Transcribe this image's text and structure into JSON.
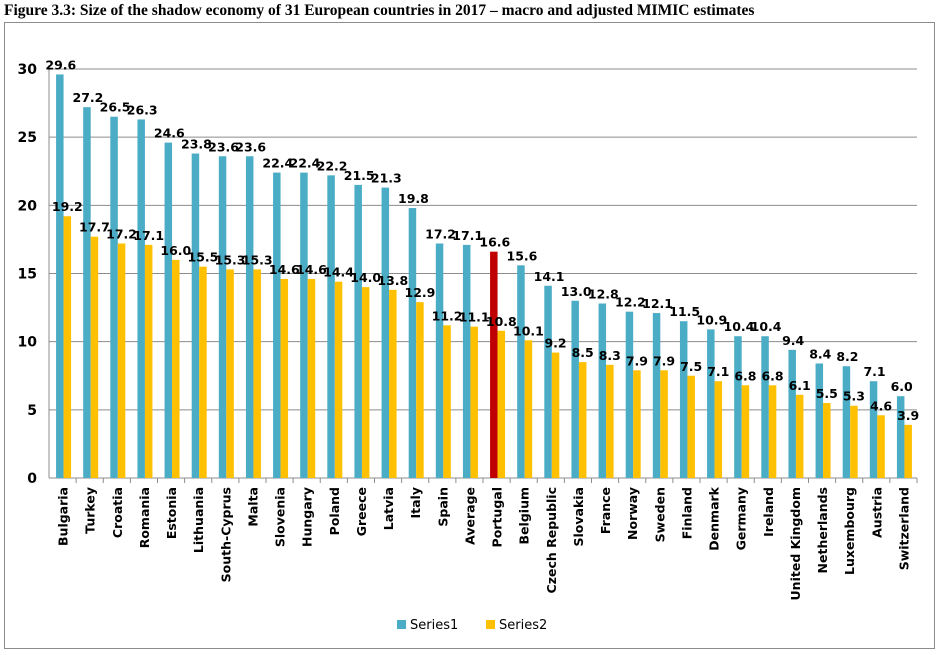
{
  "figure": {
    "title": "Figure 3.3: Size of the shadow economy of 31 European countries in 2017 – macro and adjusted MIMIC estimates"
  },
  "chart_data": {
    "type": "bar",
    "categories": [
      "Bulgaria",
      "Turkey",
      "Croatia",
      "Romania",
      "Estonia",
      "Lithuania",
      "South-Cyprus",
      "Malta",
      "Slovenia",
      "Hungary",
      "Poland",
      "Greece",
      "Latvia",
      "Italy",
      "Spain",
      "Average",
      "Portugal",
      "Belgium",
      "Czech Republic",
      "Slovakia",
      "France",
      "Norway",
      "Sweden",
      "Finland",
      "Denmark",
      "Germany",
      "Ireland",
      "United Kingdom",
      "Netherlands",
      "Luxembourg",
      "Austria",
      "Switzerland"
    ],
    "series": [
      {
        "name": "Series1",
        "color": "#4BACC6",
        "values": [
          29.6,
          27.2,
          26.5,
          26.3,
          24.6,
          23.8,
          23.6,
          23.6,
          22.4,
          22.4,
          22.2,
          21.5,
          21.3,
          19.8,
          17.2,
          17.1,
          16.6,
          15.6,
          14.1,
          13.0,
          12.8,
          12.2,
          12.1,
          11.5,
          10.9,
          10.4,
          10.4,
          9.4,
          8.4,
          8.2,
          7.1,
          6.0
        ]
      },
      {
        "name": "Series2",
        "color": "#FFC000",
        "values": [
          19.2,
          17.7,
          17.2,
          17.1,
          16.0,
          15.5,
          15.3,
          15.3,
          14.6,
          14.6,
          14.4,
          14.0,
          13.8,
          12.9,
          11.2,
          11.1,
          10.8,
          10.1,
          9.2,
          8.5,
          8.3,
          7.9,
          7.9,
          7.5,
          7.1,
          6.8,
          6.8,
          6.1,
          5.5,
          5.3,
          4.6,
          3.9
        ]
      }
    ],
    "highlight": {
      "category": "Portugal",
      "series": "Series1",
      "color": "#C00000"
    },
    "ylim": [
      0,
      30
    ],
    "yticks": [
      0,
      5,
      10,
      15,
      20,
      25,
      30
    ],
    "grid": true,
    "legend": "bottom-center",
    "xlabel": "",
    "ylabel": ""
  }
}
